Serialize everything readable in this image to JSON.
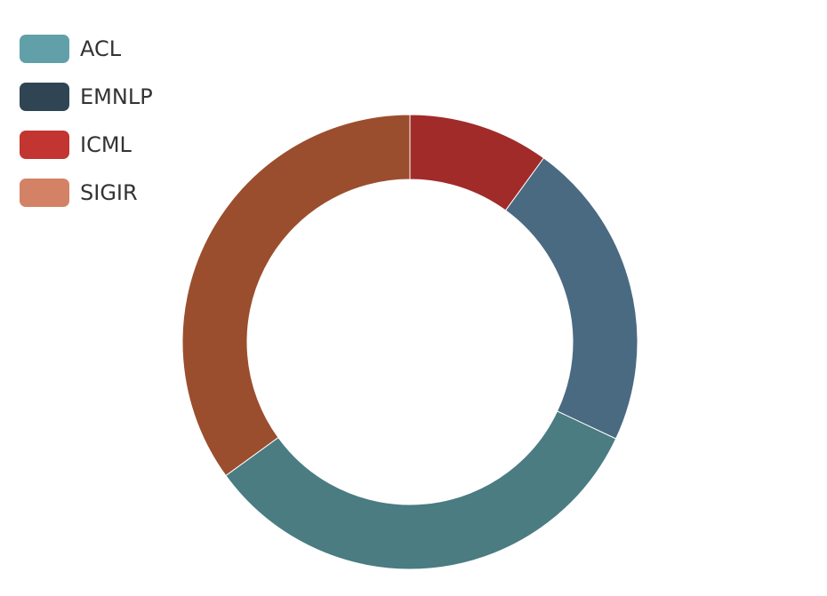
{
  "chart_data": {
    "type": "pie",
    "donut": true,
    "title": "",
    "legend_position": "top-left",
    "categories": [
      "ACL",
      "EMNLP",
      "ICML",
      "SIGIR"
    ],
    "values": [
      33,
      22,
      10,
      35
    ],
    "value_unit": "percent (estimated)",
    "slice_order": [
      "ICML",
      "EMNLP",
      "ACL",
      "SIGIR"
    ],
    "legend_colors": {
      "ACL": "#61a0a8",
      "EMNLP": "#2f4554",
      "ICML": "#c23531",
      "SIGIR": "#d48265"
    },
    "slice_colors": {
      "ACL": "#4a7c82",
      "EMNLP": "#4a6a82",
      "ICML": "#a12b29",
      "SIGIR": "#9a4e2e"
    }
  }
}
